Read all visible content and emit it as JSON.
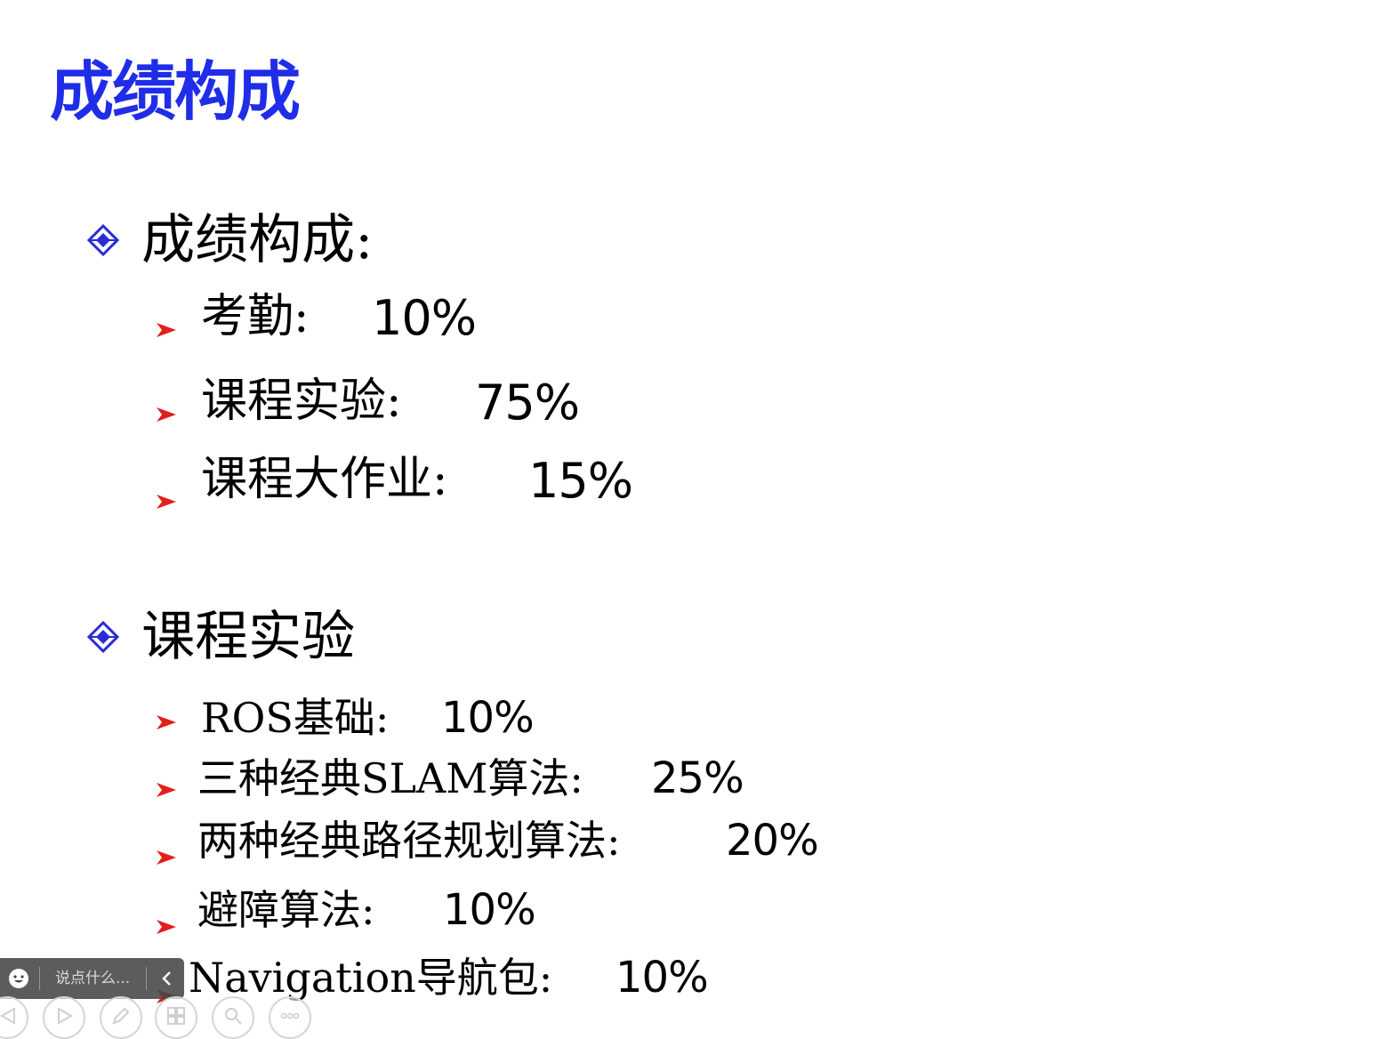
{
  "slide": {
    "title": "成绩构成",
    "sections": [
      {
        "label": "成绩构成:",
        "items": [
          {
            "label": "考勤:",
            "value": "10%"
          },
          {
            "label": "课程实验:",
            "value": "75%"
          },
          {
            "label": "课程大作业:",
            "value": "15%"
          }
        ]
      },
      {
        "label": "课程实验",
        "items": [
          {
            "label": "ROS基础:",
            "value": "10%"
          },
          {
            "label": "三种经典SLAM算法:",
            "value": "25%"
          },
          {
            "label": "两种经典路径规划算法:",
            "value": "20%"
          },
          {
            "label": "避障算法:",
            "value": "10%"
          },
          {
            "label": "Navigation导航包:",
            "value": "10%"
          }
        ]
      }
    ]
  },
  "comment_bar": {
    "placeholder": "说点什么...",
    "smiley_icon": "smiley-icon",
    "collapse_icon": "chevron-left-icon"
  },
  "nav_controls": [
    {
      "icon": "previous-icon"
    },
    {
      "icon": "next-icon"
    },
    {
      "icon": "pen-icon"
    },
    {
      "icon": "slides-grid-icon"
    },
    {
      "icon": "zoom-icon"
    },
    {
      "icon": "more-icon"
    }
  ],
  "colors": {
    "title": "#1f2de8",
    "diamond_bullet": "#2a2ad8",
    "arrow_bullet": "#e0201c"
  }
}
